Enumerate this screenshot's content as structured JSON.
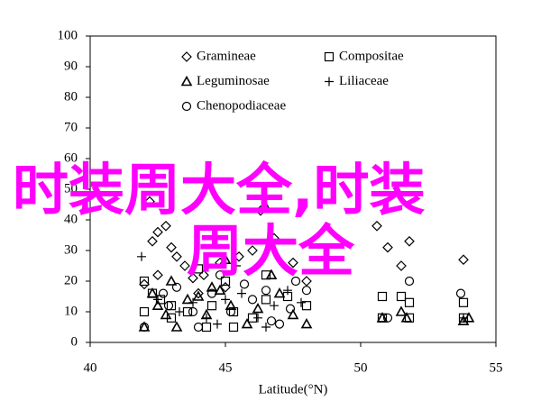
{
  "chart_data": {
    "type": "scatter",
    "x_label": "Latitude(°N)",
    "xlim": [
      40,
      55
    ],
    "xticks": [
      40,
      45,
      50,
      55
    ],
    "ylim": [
      0,
      100
    ],
    "yticks": [
      0,
      10,
      20,
      30,
      40,
      50,
      60,
      70,
      80,
      90,
      100
    ],
    "legend": "upper center",
    "series": [
      {
        "name": "Gramineae",
        "marker": "diamond",
        "color": "#000000",
        "x": [
          42.2,
          42.3,
          42.5,
          42.8,
          43.0,
          43.2,
          43.5,
          42.0,
          42.5,
          43.8,
          44.2,
          44.8,
          45.5,
          46.0,
          46.3,
          46.8,
          47.5,
          48.0,
          50.6,
          51.0,
          51.5,
          51.8,
          53.8,
          45.0,
          44.0
        ],
        "y": [
          46,
          33,
          36,
          38,
          31,
          28,
          25,
          19,
          22,
          21,
          22,
          26,
          28,
          30,
          43,
          34,
          26,
          20,
          38,
          31,
          25,
          33,
          27,
          18,
          16
        ]
      },
      {
        "name": "Compositae",
        "marker": "square",
        "color": "#000000",
        "x": [
          42.0,
          42.3,
          42.6,
          43.0,
          43.6,
          44.5,
          45.3,
          46.0,
          46.5,
          47.3,
          48.0,
          42.0,
          43.0,
          44.3,
          45.3,
          50.8,
          51.5,
          51.8,
          50.8,
          51.8,
          53.8,
          53.8,
          44.0,
          45.0,
          46.5
        ],
        "y": [
          20,
          16,
          14,
          12,
          10,
          12,
          10,
          8,
          14,
          15,
          12,
          10,
          8,
          5,
          5,
          15,
          15,
          13,
          8,
          8,
          13,
          8,
          24,
          20,
          22
        ]
      },
      {
        "name": "Leguminosae",
        "marker": "triangle",
        "color": "#000000",
        "x": [
          42.0,
          42.3,
          42.5,
          43.0,
          43.2,
          43.6,
          44.0,
          44.3,
          44.8,
          45.2,
          45.0,
          46.2,
          46.5,
          46.7,
          47.0,
          47.5,
          48.0,
          50.8,
          51.5,
          51.7,
          53.8,
          54.0,
          42.8,
          44.5,
          45.8
        ],
        "y": [
          5,
          16,
          12,
          20,
          5,
          14,
          15,
          9,
          17,
          12,
          27,
          11,
          44,
          22,
          16,
          9,
          6,
          8,
          10,
          8,
          7,
          8,
          9,
          18,
          6
        ]
      },
      {
        "name": "Liliaceae",
        "marker": "plus",
        "color": "#000000",
        "x": [
          41.9,
          42.5,
          43.3,
          44.3,
          45.0,
          45.6,
          46.2,
          46.8,
          47.3,
          47.8,
          43.8,
          44.7,
          45.4,
          46.5,
          53.8
        ],
        "y": [
          28,
          14,
          10,
          8,
          14,
          16,
          8,
          12,
          17,
          13,
          13,
          6,
          25,
          5,
          8
        ]
      },
      {
        "name": "Chenopodiaceae",
        "marker": "circle",
        "color": "#000000",
        "x": [
          42.0,
          42.7,
          43.2,
          43.8,
          44.5,
          44.8,
          45.2,
          46.0,
          46.5,
          47.0,
          47.6,
          48.0,
          51.0,
          51.8,
          53.7,
          42.9,
          44.0,
          46.7,
          45.7,
          47.4
        ],
        "y": [
          5,
          16,
          18,
          10,
          16,
          22,
          10,
          14,
          17,
          6,
          20,
          17,
          8,
          20,
          16,
          12,
          5,
          7,
          19,
          11
        ]
      }
    ],
    "annotations": [
      "时装周大全,时装",
      "周大全"
    ]
  }
}
